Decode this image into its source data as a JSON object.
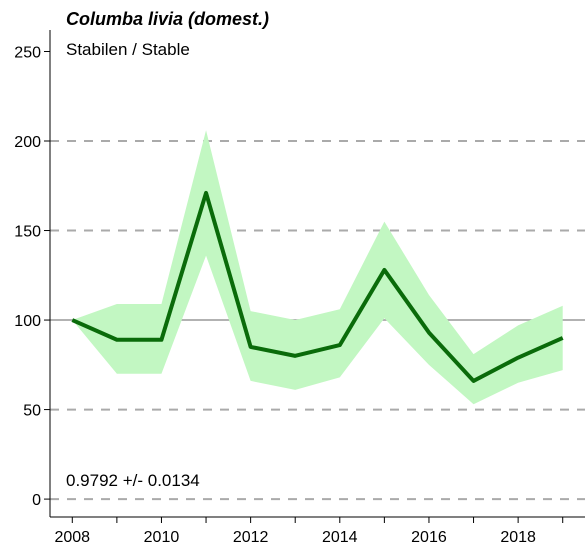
{
  "chart_data": {
    "type": "line",
    "title": "Columba livia (domest.)",
    "subtitle": "Stabilen / Stable",
    "annotation": "0.9792 +/- 0.0134",
    "x": [
      2008,
      2009,
      2010,
      2011,
      2012,
      2013,
      2014,
      2015,
      2016,
      2017,
      2018,
      2019
    ],
    "series": [
      {
        "values": [
          100,
          89,
          89,
          171,
          85,
          80,
          86,
          128,
          93,
          66,
          79,
          90
        ],
        "lower": [
          100,
          70,
          70,
          136,
          66,
          61,
          68,
          101,
          75,
          53,
          65,
          72
        ],
        "upper": [
          100,
          109,
          109,
          206,
          105,
          100,
          106,
          155,
          114,
          81,
          97,
          108
        ]
      }
    ],
    "xticks": [
      2008,
      2010,
      2012,
      2014,
      2016,
      2018
    ],
    "yticks": [
      0,
      50,
      100,
      150,
      200,
      250
    ],
    "xlim": [
      2007.5,
      2019.5
    ],
    "ylim": [
      -10,
      262
    ],
    "dashed_gridlines": [
      0,
      50,
      150,
      200
    ],
    "reference_line": 100,
    "colors": {
      "line": "#0a6b0a",
      "band": "#c2f7c2",
      "grid": "#aaaaaa",
      "reference": "#999999",
      "axis": "#000000"
    }
  }
}
